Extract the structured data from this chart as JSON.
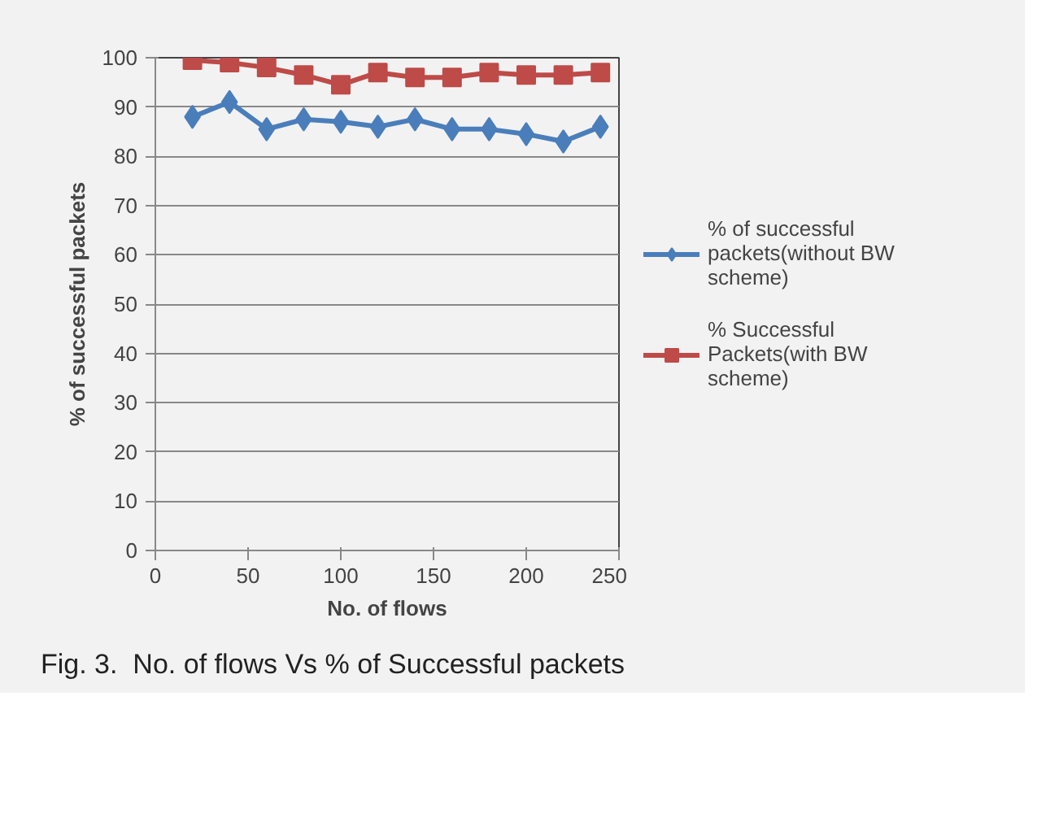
{
  "chart_data": {
    "type": "line",
    "xlabel": "No. of flows",
    "ylabel": "% of successful packets",
    "x": [
      20,
      40,
      60,
      80,
      100,
      120,
      140,
      160,
      180,
      200,
      220,
      240
    ],
    "series": [
      {
        "name": "% of successful packets(without BW scheme)",
        "color": "#4a7ebb",
        "marker": "diamond",
        "values": [
          88,
          91,
          85.5,
          87.5,
          87,
          86,
          87.5,
          85.5,
          85.5,
          84.5,
          83,
          86
        ]
      },
      {
        "name": "% Successful Packets(with BW scheme)",
        "color": "#be4b48",
        "marker": "square",
        "values": [
          99.5,
          99,
          98,
          96.5,
          94.5,
          97,
          96,
          96,
          97,
          96.5,
          96.5,
          97
        ]
      }
    ],
    "xlim": [
      0,
      250
    ],
    "xticks": [
      0,
      50,
      100,
      150,
      200,
      250
    ],
    "ylim": [
      0,
      100
    ],
    "yticks": [
      0,
      10,
      20,
      30,
      40,
      50,
      60,
      70,
      80,
      90,
      100
    ],
    "grid": "y",
    "legend": "right",
    "annotations": [
      "Fig. 3.  No. of flows Vs % of Successful packets"
    ]
  }
}
